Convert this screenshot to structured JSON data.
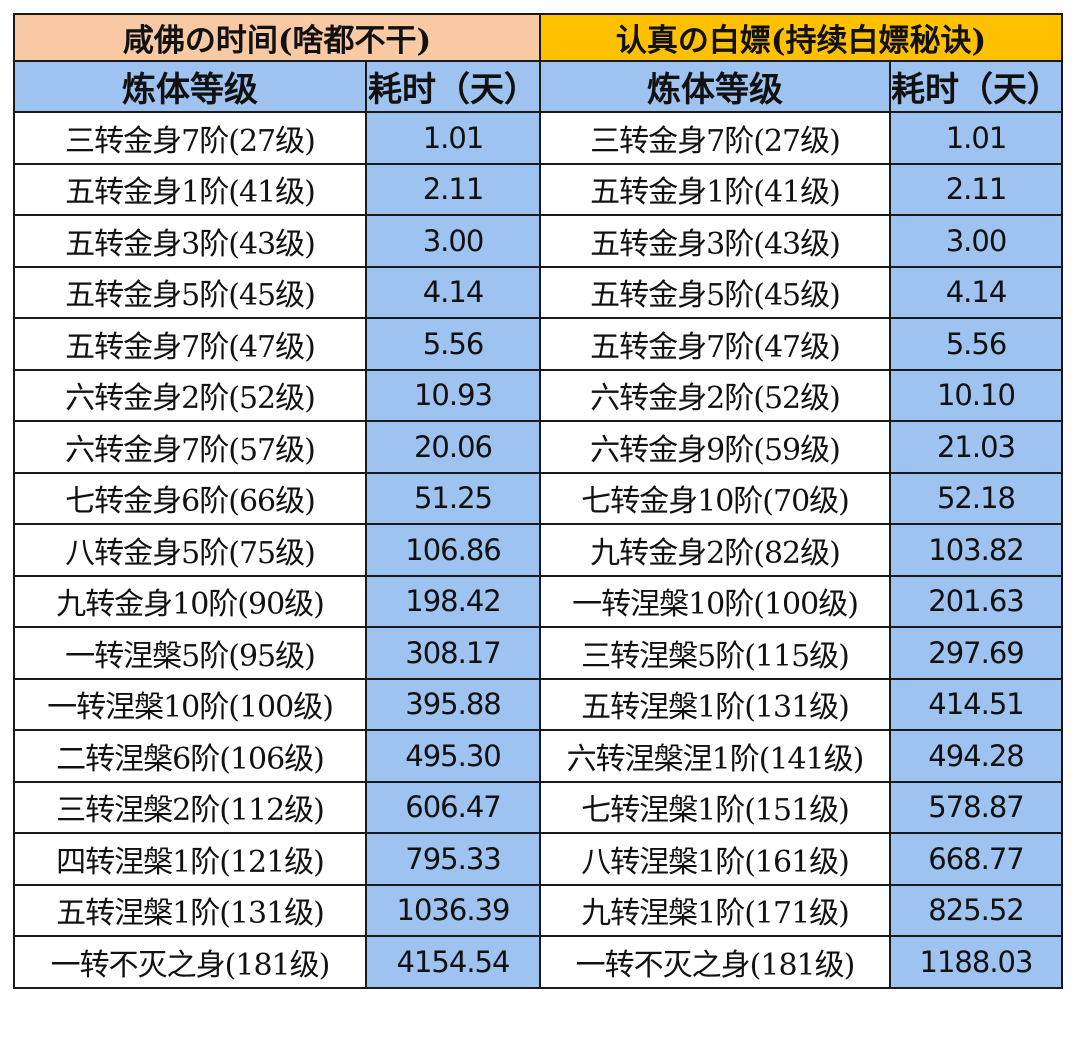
{
  "colors": {
    "left_title_bg": "#f8c9a2",
    "right_title_bg": "#ffc000",
    "header_bg": "#9ec3f0",
    "value_cell_bg": "#9ec3f0",
    "border": "#1a1a1a"
  },
  "left": {
    "title": "咸佛の时间(啥都不干)",
    "col_level": "炼体等级",
    "col_days": "耗时（天）",
    "rows": [
      {
        "level": "三转金身7阶(27级)",
        "days": "1.01"
      },
      {
        "level": "五转金身1阶(41级)",
        "days": "2.11"
      },
      {
        "level": "五转金身3阶(43级)",
        "days": "3.00"
      },
      {
        "level": "五转金身5阶(45级)",
        "days": "4.14"
      },
      {
        "level": "五转金身7阶(47级)",
        "days": "5.56"
      },
      {
        "level": "六转金身2阶(52级)",
        "days": "10.93"
      },
      {
        "level": "六转金身7阶(57级)",
        "days": "20.06"
      },
      {
        "level": "七转金身6阶(66级)",
        "days": "51.25"
      },
      {
        "level": "八转金身5阶(75级)",
        "days": "106.86"
      },
      {
        "level": "九转金身10阶(90级)",
        "days": "198.42"
      },
      {
        "level": "一转涅槃5阶(95级)",
        "days": "308.17"
      },
      {
        "level": "一转涅槃10阶(100级)",
        "days": "395.88"
      },
      {
        "level": "二转涅槃6阶(106级)",
        "days": "495.30"
      },
      {
        "level": "三转涅槃2阶(112级)",
        "days": "606.47"
      },
      {
        "level": "四转涅槃1阶(121级)",
        "days": "795.33"
      },
      {
        "level": "五转涅槃1阶(131级)",
        "days": "1036.39"
      },
      {
        "level": "一转不灭之身(181级)",
        "days": "4154.54"
      }
    ]
  },
  "right": {
    "title": "认真の白嫖(持续白嫖秘诀)",
    "col_level": "炼体等级",
    "col_days": "耗时（天）",
    "rows": [
      {
        "level": "三转金身7阶(27级)",
        "days": "1.01"
      },
      {
        "level": "五转金身1阶(41级)",
        "days": "2.11"
      },
      {
        "level": "五转金身3阶(43级)",
        "days": "3.00"
      },
      {
        "level": "五转金身5阶(45级)",
        "days": "4.14"
      },
      {
        "level": "五转金身7阶(47级)",
        "days": "5.56"
      },
      {
        "level": "六转金身2阶(52级)",
        "days": "10.10"
      },
      {
        "level": "六转金身9阶(59级)",
        "days": "21.03"
      },
      {
        "level": "七转金身10阶(70级)",
        "days": "52.18"
      },
      {
        "level": "九转金身2阶(82级)",
        "days": "103.82"
      },
      {
        "level": "一转涅槃10阶(100级)",
        "days": "201.63"
      },
      {
        "level": "三转涅槃5阶(115级)",
        "days": "297.69"
      },
      {
        "level": "五转涅槃1阶(131级)",
        "days": "414.51"
      },
      {
        "level": "六转涅槃涅1阶(141级)",
        "days": "494.28"
      },
      {
        "level": "七转涅槃1阶(151级)",
        "days": "578.87"
      },
      {
        "level": "八转涅槃1阶(161级)",
        "days": "668.77"
      },
      {
        "level": "九转涅槃1阶(171级)",
        "days": "825.52"
      },
      {
        "level": "一转不灭之身(181级)",
        "days": "1188.03"
      }
    ]
  }
}
